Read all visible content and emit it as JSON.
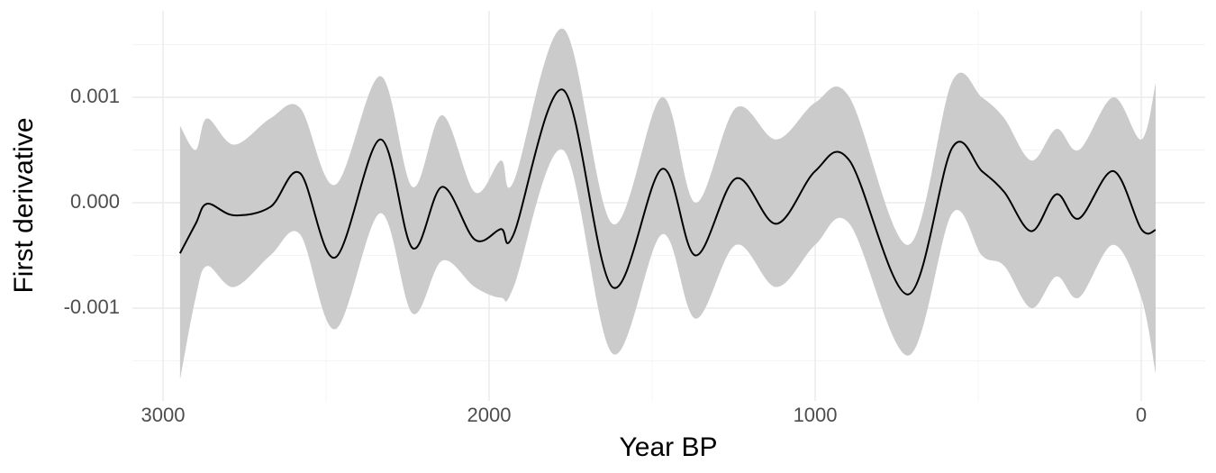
{
  "chart_data": {
    "type": "ribbon-line",
    "xlabel": "Year BP",
    "ylabel": "First derivative",
    "x": [
      2948,
      2900,
      2865,
      2782,
      2671,
      2580,
      2472,
      2334,
      2235,
      2144,
      2044,
      1964,
      1925,
      1773,
      1622,
      1470,
      1367,
      1243,
      1119,
      1000,
      895,
      715,
      580,
      489,
      420,
      337,
      260,
      191,
      86,
      0,
      -44
    ],
    "values": [
      -0.00048,
      -0.0002,
      -1e-05,
      -0.00012,
      -4e-05,
      0.00028,
      -0.00052,
      0.0006,
      -0.00043,
      0.00015,
      -0.00035,
      -0.00025,
      -0.0003,
      0.00107,
      -0.0008,
      0.00032,
      -0.0005,
      0.00023,
      -0.0002,
      0.0003,
      0.0004,
      -0.00087,
      0.00052,
      0.0003,
      0.0001,
      -0.00027,
      8e-05,
      -0.00015,
      0.0003,
      -0.00025,
      -0.00026
    ],
    "upper": [
      0.00073,
      0.0005,
      0.0008,
      0.00055,
      0.0008,
      0.0009,
      0.00017,
      0.0012,
      0.00015,
      0.00083,
      0.0001,
      0.0004,
      0.0002,
      0.00165,
      -0.0002,
      0.001,
      0.0,
      0.0009,
      0.0006,
      0.00095,
      0.001,
      -0.0004,
      0.00115,
      0.001,
      0.0008,
      0.0004,
      0.0007,
      0.0005,
      0.001,
      0.0006,
      0.00113
    ],
    "lower": [
      -0.00168,
      -0.0009,
      -0.0006,
      -0.0008,
      -0.0005,
      -0.0003,
      -0.0012,
      -0.0001,
      -0.00105,
      -0.00055,
      -0.0008,
      -0.0009,
      -0.0008,
      0.0005,
      -0.00143,
      -0.0003,
      -0.0011,
      -0.0004,
      -0.0008,
      -0.0004,
      -0.0002,
      -0.00145,
      -0.0001,
      -0.0005,
      -0.0006,
      -0.001,
      -0.0007,
      -0.0009,
      -0.0004,
      -0.0009,
      -0.00162
    ],
    "color": "#000000",
    "band_color": "#cbcbcb",
    "xlim": [
      3094,
      -196
    ],
    "ylim": [
      -0.00188,
      0.00182
    ],
    "xticks": [
      3000,
      2000,
      1000,
      0
    ],
    "yticks": [
      {
        "value": -0.001,
        "label": "-0.001"
      },
      {
        "value": 0,
        "label": "0.000"
      },
      {
        "value": 0.001,
        "label": "0.001"
      }
    ],
    "xminor": [
      2500,
      1500,
      500
    ],
    "yminor": [
      -0.0015,
      -0.0005,
      0.0005,
      0.0015
    ],
    "grid": true
  }
}
